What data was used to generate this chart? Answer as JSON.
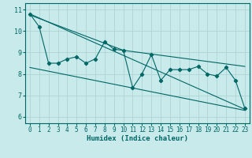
{
  "xlabel": "Humidex (Indice chaleur)",
  "bg_color": "#c8eaea",
  "grid_color": "#aed4d4",
  "line_color": "#006666",
  "xlim": [
    -0.5,
    23.5
  ],
  "ylim": [
    5.7,
    11.3
  ],
  "xticks": [
    0,
    1,
    2,
    3,
    4,
    5,
    6,
    7,
    8,
    9,
    10,
    11,
    12,
    13,
    14,
    15,
    16,
    17,
    18,
    19,
    20,
    21,
    22,
    23
  ],
  "yticks": [
    6,
    7,
    8,
    9,
    10,
    11
  ],
  "data_x": [
    0,
    1,
    2,
    3,
    4,
    5,
    6,
    7,
    8,
    9,
    10,
    11,
    12,
    13,
    14,
    15,
    16,
    17,
    18,
    19,
    20,
    21,
    22,
    23
  ],
  "data_y": [
    10.8,
    10.2,
    8.5,
    8.5,
    8.7,
    8.8,
    8.5,
    8.7,
    9.5,
    9.15,
    9.1,
    7.35,
    8.0,
    8.9,
    7.7,
    8.2,
    8.2,
    8.2,
    8.35,
    8.0,
    7.9,
    8.3,
    7.7,
    6.4
  ],
  "line1_x": [
    0,
    23
  ],
  "line1_y": [
    10.8,
    6.35
  ],
  "line2_x": [
    0,
    10,
    23
  ],
  "line2_y": [
    10.75,
    9.1,
    8.35
  ],
  "line3_x": [
    0,
    23
  ],
  "line3_y": [
    8.3,
    6.3
  ],
  "tick_labelsize": 5.5,
  "xlabel_fontsize": 6.5
}
